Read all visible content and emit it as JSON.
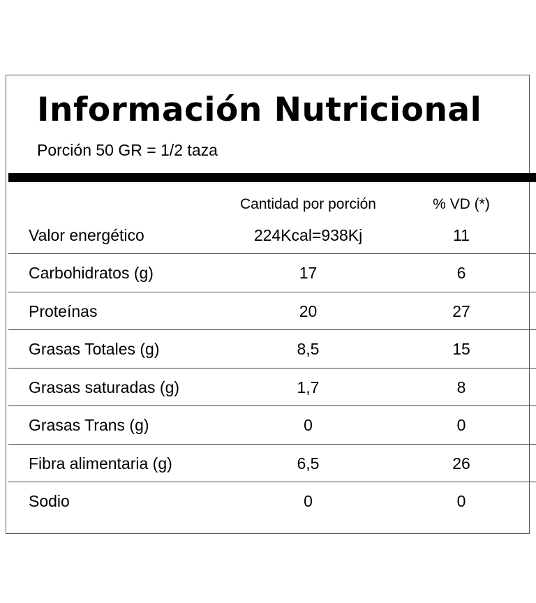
{
  "title": "Información Nutricional",
  "portion": "Porción 50 GR = 1/2 taza",
  "headers": {
    "quantity": "Cantidad por porción",
    "daily_value": "% VD (*)"
  },
  "rows": [
    {
      "name": "Valor energético",
      "quantity": "224Kcal=938Kj",
      "daily_value": "11"
    },
    {
      "name": "Carbohidratos (g)",
      "quantity": "17",
      "daily_value": "6"
    },
    {
      "name": "Proteínas",
      "quantity": "20",
      "daily_value": "27"
    },
    {
      "name": "Grasas Totales (g)",
      "quantity": "8,5",
      "daily_value": "15"
    },
    {
      "name": "Grasas saturadas (g)",
      "quantity": "1,7",
      "daily_value": "8"
    },
    {
      "name": "Grasas Trans (g)",
      "quantity": "0",
      "daily_value": "0"
    },
    {
      "name": "Fibra alimentaria (g)",
      "quantity": "6,5",
      "daily_value": "26"
    },
    {
      "name": "Sodio",
      "quantity": "0",
      "daily_value": "0"
    }
  ]
}
